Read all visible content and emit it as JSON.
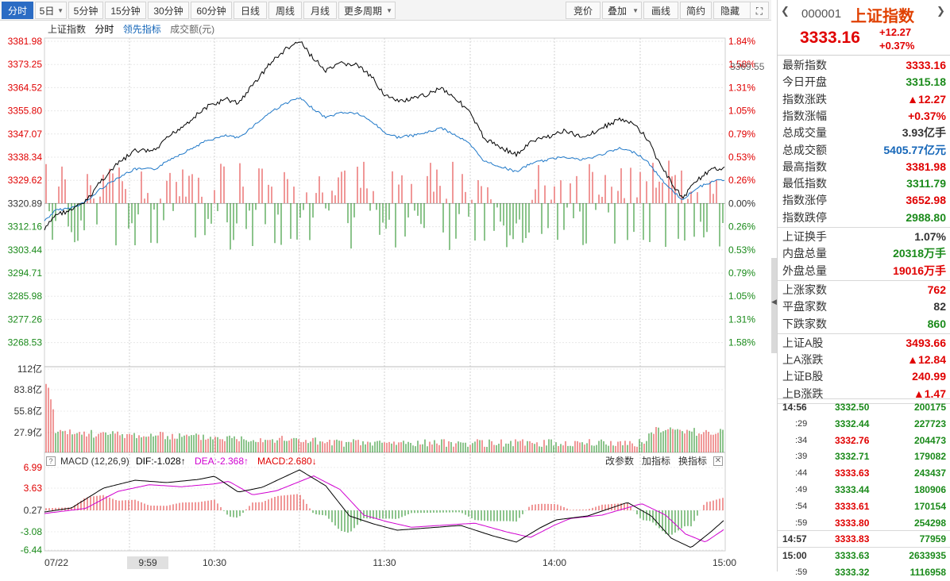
{
  "toolbar": {
    "left": [
      "分时",
      "5日",
      "5分钟",
      "15分钟",
      "30分钟",
      "60分钟",
      "日线",
      "周线",
      "月线",
      "更多周期"
    ],
    "right": [
      "竞价",
      "叠加",
      "画线",
      "简约",
      "隐藏"
    ]
  },
  "legend": {
    "index": "上证指数",
    "mode": "分时",
    "lead": "领先指标",
    "volume": "成交额(元)"
  },
  "axis": {
    "left": [
      "3381.98",
      "3373.25",
      "3364.52",
      "3355.80",
      "3347.07",
      "3338.34",
      "3329.62",
      "3320.89",
      "3312.16",
      "3303.44",
      "3294.71",
      "3285.98",
      "3277.26",
      "3268.53"
    ],
    "right": [
      "1.84%",
      "1.58%",
      "1.31%",
      "1.05%",
      "0.79%",
      "0.53%",
      "0.26%",
      "0.00%",
      "0.26%",
      "0.53%",
      "0.79%",
      "1.05%",
      "1.31%",
      "1.58%"
    ],
    "current": "3369.55",
    "vol": [
      "112亿",
      "83.8亿",
      "55.8亿",
      "27.9亿"
    ],
    "macd": [
      "6.99",
      "3.63",
      "0.27",
      "-3.08",
      "-6.44"
    ],
    "time": [
      "07/22",
      "9:59",
      "10:30",
      "11:30",
      "14:00",
      "15:00"
    ]
  },
  "macd": {
    "title": "MACD (12,26,9)",
    "dif": "DIF:-1.028",
    "dea": "DEA:-2.368",
    "macd": "MACD:2.680",
    "dif_arrow": "↑",
    "dea_arrow": "↑",
    "macd_arrow": "↓",
    "actions": [
      "改参数",
      "加指标",
      "换指标"
    ]
  },
  "panel": {
    "code": "000001",
    "name": "上证指数",
    "price": "3333.16",
    "change": "+12.27",
    "pct": "+0.37%",
    "stats1": [
      {
        "k": "最新指数",
        "v": "3333.16",
        "c": "#e00000"
      },
      {
        "k": "今日开盘",
        "v": "3315.18",
        "c": "#1a8a1a"
      },
      {
        "k": "指数涨跌",
        "v": "▲12.27",
        "c": "#e00000"
      },
      {
        "k": "指数涨幅",
        "v": "+0.37%",
        "c": "#e00000"
      },
      {
        "k": "总成交量",
        "v": "3.93亿手",
        "c": "#333333"
      },
      {
        "k": "总成交额",
        "v": "5405.77亿元",
        "c": "#1566b8"
      },
      {
        "k": "最高指数",
        "v": "3381.98",
        "c": "#e00000"
      },
      {
        "k": "最低指数",
        "v": "3311.79",
        "c": "#1a8a1a"
      },
      {
        "k": "指数涨停",
        "v": "3652.98",
        "c": "#e00000"
      },
      {
        "k": "指数跌停",
        "v": "2988.80",
        "c": "#1a8a1a"
      }
    ],
    "stats2": [
      {
        "k": "上证换手",
        "v": "1.07%",
        "c": "#333333"
      },
      {
        "k": "内盘总量",
        "v": "20318万手",
        "c": "#1a8a1a"
      },
      {
        "k": "外盘总量",
        "v": "19016万手",
        "c": "#e00000"
      }
    ],
    "stats3": [
      {
        "k": "上涨家数",
        "v": "762",
        "c": "#e00000"
      },
      {
        "k": "平盘家数",
        "v": "82",
        "c": "#333333"
      },
      {
        "k": "下跌家数",
        "v": "860",
        "c": "#1a8a1a"
      }
    ],
    "stats4": [
      {
        "k": "上证A股",
        "v": "3493.66",
        "c": "#e00000"
      },
      {
        "k": "上A涨跌",
        "v": "▲12.84",
        "c": "#e00000"
      },
      {
        "k": "上证B股",
        "v": "240.99",
        "c": "#e00000"
      },
      {
        "k": "上B涨跌",
        "v": "▲1.47",
        "c": "#e00000"
      }
    ],
    "ticks": [
      {
        "t": "14:56",
        "p": "3332.50",
        "q": "200175",
        "c": "#1a8a1a"
      },
      {
        "t": ":29",
        "p": "3332.44",
        "q": "227723",
        "c": "#1a8a1a"
      },
      {
        "t": ":34",
        "p": "3332.76",
        "q": "204473",
        "c": "#e00000"
      },
      {
        "t": ":39",
        "p": "3332.71",
        "q": "179082",
        "c": "#1a8a1a"
      },
      {
        "t": ":44",
        "p": "3333.63",
        "q": "243437",
        "c": "#e00000"
      },
      {
        "t": ":49",
        "p": "3333.44",
        "q": "180906",
        "c": "#1a8a1a"
      },
      {
        "t": ":54",
        "p": "3333.61",
        "q": "170154",
        "c": "#e00000"
      },
      {
        "t": ":59",
        "p": "3333.80",
        "q": "254298",
        "c": "#e00000"
      },
      {
        "t": "14:57",
        "p": "3333.83",
        "q": "77959",
        "c": "#e00000"
      },
      {
        "t": "15:00",
        "p": "3333.63",
        "q": "2633935",
        "c": "#1a8a1a"
      },
      {
        "t": ":59",
        "p": "3333.32",
        "q": "1116958",
        "c": "#1a8a1a"
      }
    ]
  }
}
